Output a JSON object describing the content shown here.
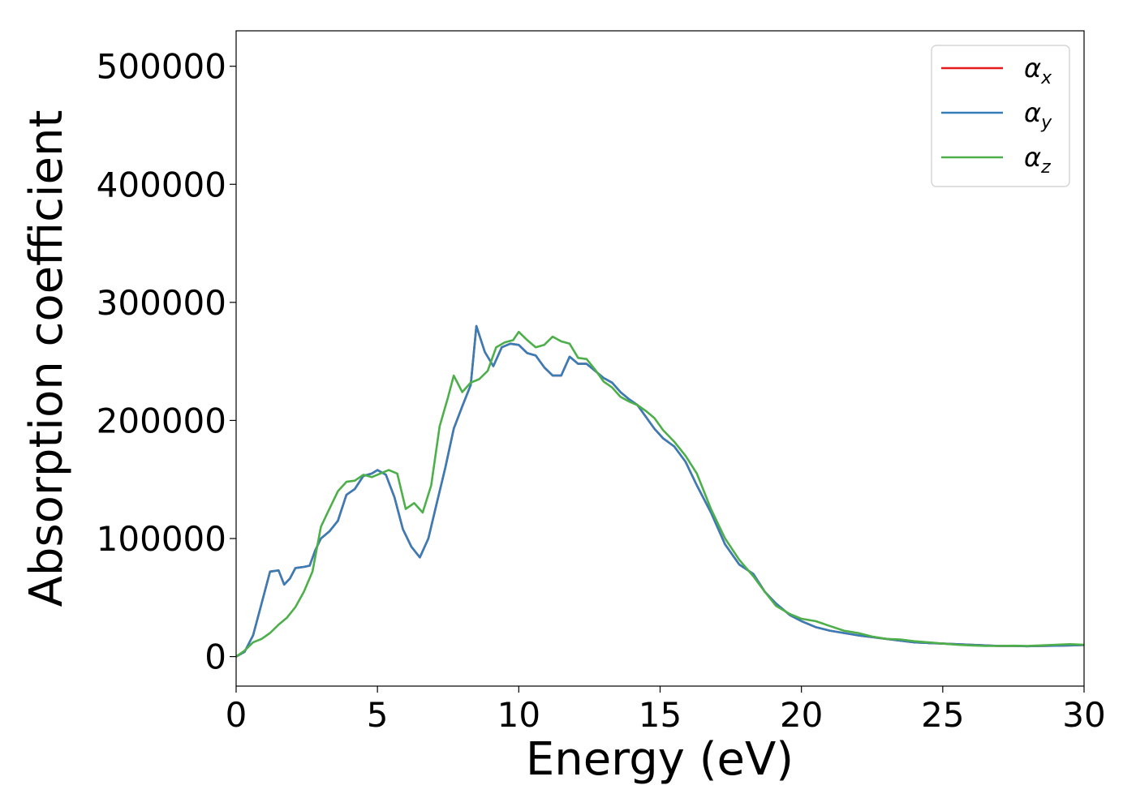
{
  "chart_data": {
    "type": "line",
    "title": "",
    "xlabel": "Energy (eV)",
    "ylabel": "Absorption coefficient",
    "xlim": [
      0,
      30
    ],
    "ylim": [
      -25000,
      530000
    ],
    "xticks": [
      "0",
      "5",
      "10",
      "15",
      "20",
      "25",
      "30"
    ],
    "xtick_values": [
      0,
      5,
      10,
      15,
      20,
      25,
      30
    ],
    "yticks": [
      "0",
      "100000",
      "200000",
      "300000",
      "400000",
      "500000"
    ],
    "ytick_values": [
      0,
      100000,
      200000,
      300000,
      400000,
      500000
    ],
    "grid": false,
    "legend_position": "top-right",
    "series": [
      {
        "name": "α",
        "subscript": "x",
        "color": "#e41a1c",
        "points": [
          [
            0,
            0
          ],
          [
            0.3,
            4000
          ],
          [
            0.6,
            18000
          ],
          [
            0.9,
            45000
          ],
          [
            1.2,
            72000
          ],
          [
            1.5,
            73000
          ],
          [
            1.7,
            61000
          ],
          [
            1.9,
            66000
          ],
          [
            2.1,
            75000
          ],
          [
            2.4,
            76000
          ],
          [
            2.6,
            77000
          ],
          [
            2.8,
            90000
          ],
          [
            3.0,
            100000
          ],
          [
            3.3,
            106000
          ],
          [
            3.6,
            115000
          ],
          [
            3.9,
            137000
          ],
          [
            4.2,
            142000
          ],
          [
            4.5,
            153000
          ],
          [
            4.8,
            155000
          ],
          [
            5.0,
            158000
          ],
          [
            5.3,
            154000
          ],
          [
            5.6,
            135000
          ],
          [
            5.9,
            108000
          ],
          [
            6.2,
            93000
          ],
          [
            6.5,
            84000
          ],
          [
            6.8,
            100000
          ],
          [
            7.1,
            130000
          ],
          [
            7.4,
            160000
          ],
          [
            7.7,
            193000
          ],
          [
            8.0,
            212000
          ],
          [
            8.3,
            230000
          ],
          [
            8.5,
            280000
          ],
          [
            8.8,
            258000
          ],
          [
            9.1,
            246000
          ],
          [
            9.4,
            262000
          ],
          [
            9.7,
            265000
          ],
          [
            10.0,
            264000
          ],
          [
            10.3,
            257000
          ],
          [
            10.6,
            255000
          ],
          [
            10.9,
            245000
          ],
          [
            11.2,
            238000
          ],
          [
            11.5,
            238000
          ],
          [
            11.8,
            254000
          ],
          [
            12.1,
            248000
          ],
          [
            12.4,
            248000
          ],
          [
            12.7,
            242000
          ],
          [
            13.0,
            236000
          ],
          [
            13.3,
            232000
          ],
          [
            13.6,
            224000
          ],
          [
            13.9,
            218000
          ],
          [
            14.2,
            213000
          ],
          [
            14.5,
            203000
          ],
          [
            14.8,
            193000
          ],
          [
            15.1,
            185000
          ],
          [
            15.5,
            178000
          ],
          [
            15.9,
            165000
          ],
          [
            16.3,
            145000
          ],
          [
            16.8,
            122000
          ],
          [
            17.3,
            95000
          ],
          [
            17.8,
            78000
          ],
          [
            18.3,
            70000
          ],
          [
            18.7,
            55000
          ],
          [
            19.1,
            45000
          ],
          [
            19.6,
            35000
          ],
          [
            20.0,
            30000
          ],
          [
            20.5,
            25000
          ],
          [
            21.0,
            22000
          ],
          [
            21.5,
            20000
          ],
          [
            22.0,
            18000
          ],
          [
            22.5,
            16500
          ],
          [
            23.0,
            15000
          ],
          [
            23.5,
            13500
          ],
          [
            24.0,
            12000
          ],
          [
            24.5,
            11500
          ],
          [
            25.0,
            11000
          ],
          [
            25.5,
            10500
          ],
          [
            26.0,
            10000
          ],
          [
            26.5,
            9500
          ],
          [
            27.0,
            9000
          ],
          [
            27.5,
            9000
          ],
          [
            28.0,
            8800
          ],
          [
            28.5,
            9000
          ],
          [
            29.0,
            9200
          ],
          [
            29.5,
            9500
          ],
          [
            30.0,
            9800
          ]
        ]
      },
      {
        "name": "α",
        "subscript": "y",
        "color": "#377eb8",
        "points": [
          [
            0,
            0
          ],
          [
            0.3,
            4000
          ],
          [
            0.6,
            18000
          ],
          [
            0.9,
            45000
          ],
          [
            1.2,
            72000
          ],
          [
            1.5,
            73000
          ],
          [
            1.7,
            61000
          ],
          [
            1.9,
            66000
          ],
          [
            2.1,
            75000
          ],
          [
            2.4,
            76000
          ],
          [
            2.6,
            77000
          ],
          [
            2.8,
            90000
          ],
          [
            3.0,
            100000
          ],
          [
            3.3,
            106000
          ],
          [
            3.6,
            115000
          ],
          [
            3.9,
            137000
          ],
          [
            4.2,
            142000
          ],
          [
            4.5,
            153000
          ],
          [
            4.8,
            155000
          ],
          [
            5.0,
            158000
          ],
          [
            5.3,
            154000
          ],
          [
            5.6,
            135000
          ],
          [
            5.9,
            108000
          ],
          [
            6.2,
            93000
          ],
          [
            6.5,
            84000
          ],
          [
            6.8,
            100000
          ],
          [
            7.1,
            130000
          ],
          [
            7.4,
            160000
          ],
          [
            7.7,
            193000
          ],
          [
            8.0,
            212000
          ],
          [
            8.3,
            230000
          ],
          [
            8.5,
            280000
          ],
          [
            8.8,
            258000
          ],
          [
            9.1,
            246000
          ],
          [
            9.4,
            262000
          ],
          [
            9.7,
            265000
          ],
          [
            10.0,
            264000
          ],
          [
            10.3,
            257000
          ],
          [
            10.6,
            255000
          ],
          [
            10.9,
            245000
          ],
          [
            11.2,
            238000
          ],
          [
            11.5,
            238000
          ],
          [
            11.8,
            254000
          ],
          [
            12.1,
            248000
          ],
          [
            12.4,
            248000
          ],
          [
            12.7,
            242000
          ],
          [
            13.0,
            236000
          ],
          [
            13.3,
            232000
          ],
          [
            13.6,
            224000
          ],
          [
            13.9,
            218000
          ],
          [
            14.2,
            213000
          ],
          [
            14.5,
            203000
          ],
          [
            14.8,
            193000
          ],
          [
            15.1,
            185000
          ],
          [
            15.5,
            178000
          ],
          [
            15.9,
            165000
          ],
          [
            16.3,
            145000
          ],
          [
            16.8,
            122000
          ],
          [
            17.3,
            95000
          ],
          [
            17.8,
            78000
          ],
          [
            18.3,
            70000
          ],
          [
            18.7,
            55000
          ],
          [
            19.1,
            45000
          ],
          [
            19.6,
            35000
          ],
          [
            20.0,
            30000
          ],
          [
            20.5,
            25000
          ],
          [
            21.0,
            22000
          ],
          [
            21.5,
            20000
          ],
          [
            22.0,
            18000
          ],
          [
            22.5,
            16500
          ],
          [
            23.0,
            15000
          ],
          [
            23.5,
            13500
          ],
          [
            24.0,
            12000
          ],
          [
            24.5,
            11500
          ],
          [
            25.0,
            11000
          ],
          [
            25.5,
            10500
          ],
          [
            26.0,
            10000
          ],
          [
            26.5,
            9500
          ],
          [
            27.0,
            9000
          ],
          [
            27.5,
            9000
          ],
          [
            28.0,
            8800
          ],
          [
            28.5,
            9000
          ],
          [
            29.0,
            9200
          ],
          [
            29.5,
            9500
          ],
          [
            30.0,
            9800
          ]
        ]
      },
      {
        "name": "α",
        "subscript": "z",
        "color": "#4daf4a",
        "points": [
          [
            0,
            0
          ],
          [
            0.3,
            5000
          ],
          [
            0.6,
            12000
          ],
          [
            0.9,
            15000
          ],
          [
            1.2,
            20000
          ],
          [
            1.5,
            27000
          ],
          [
            1.8,
            33000
          ],
          [
            2.1,
            42000
          ],
          [
            2.4,
            55000
          ],
          [
            2.7,
            72000
          ],
          [
            3.0,
            110000
          ],
          [
            3.3,
            125000
          ],
          [
            3.6,
            140000
          ],
          [
            3.9,
            148000
          ],
          [
            4.2,
            149000
          ],
          [
            4.5,
            154000
          ],
          [
            4.8,
            152000
          ],
          [
            5.1,
            155000
          ],
          [
            5.4,
            158000
          ],
          [
            5.7,
            155000
          ],
          [
            6.0,
            125000
          ],
          [
            6.3,
            130000
          ],
          [
            6.6,
            122000
          ],
          [
            6.9,
            145000
          ],
          [
            7.2,
            195000
          ],
          [
            7.5,
            220000
          ],
          [
            7.7,
            238000
          ],
          [
            8.0,
            224000
          ],
          [
            8.3,
            232000
          ],
          [
            8.6,
            235000
          ],
          [
            8.9,
            242000
          ],
          [
            9.2,
            262000
          ],
          [
            9.5,
            266000
          ],
          [
            9.8,
            268000
          ],
          [
            10.0,
            275000
          ],
          [
            10.3,
            268000
          ],
          [
            10.6,
            262000
          ],
          [
            10.9,
            264000
          ],
          [
            11.2,
            271000
          ],
          [
            11.5,
            267000
          ],
          [
            11.8,
            265000
          ],
          [
            12.1,
            253000
          ],
          [
            12.4,
            252000
          ],
          [
            12.7,
            243000
          ],
          [
            13.0,
            233000
          ],
          [
            13.3,
            228000
          ],
          [
            13.6,
            220000
          ],
          [
            13.9,
            216000
          ],
          [
            14.2,
            213000
          ],
          [
            14.5,
            208000
          ],
          [
            14.8,
            202000
          ],
          [
            15.1,
            192000
          ],
          [
            15.5,
            182000
          ],
          [
            15.9,
            170000
          ],
          [
            16.3,
            155000
          ],
          [
            16.8,
            125000
          ],
          [
            17.3,
            100000
          ],
          [
            17.8,
            82000
          ],
          [
            18.3,
            68000
          ],
          [
            18.7,
            55000
          ],
          [
            19.1,
            43000
          ],
          [
            19.6,
            36000
          ],
          [
            20.0,
            32000
          ],
          [
            20.5,
            30000
          ],
          [
            21.0,
            26000
          ],
          [
            21.5,
            22000
          ],
          [
            22.0,
            20000
          ],
          [
            22.5,
            17000
          ],
          [
            23.0,
            15000
          ],
          [
            23.5,
            14500
          ],
          [
            24.0,
            13000
          ],
          [
            24.5,
            12000
          ],
          [
            25.0,
            11000
          ],
          [
            25.5,
            10000
          ],
          [
            26.0,
            9500
          ],
          [
            26.5,
            9000
          ],
          [
            27.0,
            9000
          ],
          [
            27.5,
            9200
          ],
          [
            28.0,
            9000
          ],
          [
            28.5,
            9500
          ],
          [
            29.0,
            10000
          ],
          [
            29.5,
            10500
          ],
          [
            30.0,
            10000
          ]
        ]
      }
    ]
  }
}
